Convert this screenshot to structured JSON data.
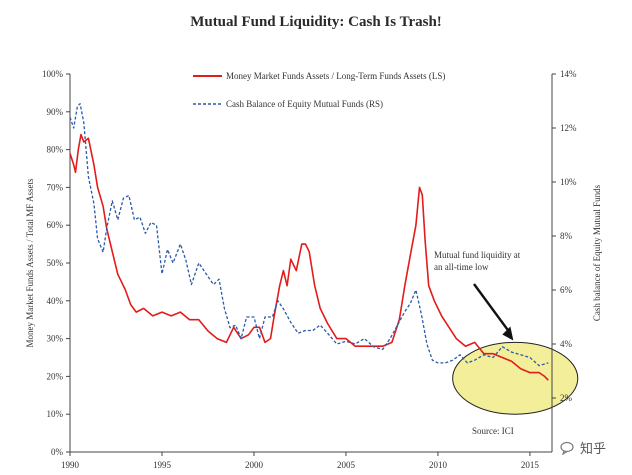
{
  "title": "Mutual Fund Liquidity: Cash Is Trash!",
  "source": "Source: ICI",
  "watermark": "知乎",
  "chart_data": {
    "type": "line",
    "x_ticks": [
      1990,
      1995,
      2000,
      2005,
      2010,
      2015
    ],
    "xlim": [
      1990,
      2016.2
    ],
    "left_axis": {
      "label": "Money Market Funds Assets / Total MF Assets",
      "ticks": [
        "0%",
        "10%",
        "20%",
        "30%",
        "40%",
        "50%",
        "60%",
        "70%",
        "80%",
        "90%",
        "100%"
      ],
      "ylim": [
        0,
        100
      ]
    },
    "right_axis": {
      "label": "Cash balance of Equity Mutual Funds",
      "ticks": [
        "2%",
        "4%",
        "6%",
        "8%",
        "10%",
        "12%",
        "14%"
      ],
      "ylim": [
        0,
        14
      ]
    },
    "legend": {
      "placement": "top-center",
      "entries": [
        {
          "label": "Money Market Funds Assets / Long-Term Funds Assets (LS)",
          "color": "#e31b1b",
          "style": "solid"
        },
        {
          "label": "Cash Balance of Equity Mutual Funds (RS)",
          "color": "#2b5aa8",
          "style": "dashed"
        }
      ]
    },
    "annotation": {
      "text_lines": [
        "Mutual fund liquidity at",
        "an all-time low"
      ],
      "arrow_to": [
        2014.1,
        29.5
      ]
    },
    "highlight_ellipse": {
      "center": [
        2014.2,
        19.5
      ],
      "radius_years": 3.4,
      "radius_pct": 9.5,
      "fill": "#f3ee9a",
      "stroke": "#222222"
    },
    "series": [
      {
        "name": "Money Market Funds Assets / Long-Term Funds Assets (LS)",
        "axis": "left",
        "color": "#e31b1b",
        "style": "solid",
        "x": [
          1990.0,
          1990.2,
          1990.3,
          1990.45,
          1990.6,
          1990.75,
          1991.0,
          1991.3,
          1991.5,
          1991.8,
          1992.0,
          1992.3,
          1992.6,
          1993.0,
          1993.3,
          1993.6,
          1994.0,
          1994.5,
          1995.0,
          1995.5,
          1996.0,
          1996.5,
          1997.0,
          1997.5,
          1998.0,
          1998.5,
          1998.9,
          1999.3,
          1999.7,
          2000.0,
          2000.3,
          2000.6,
          2000.9,
          2001.1,
          2001.4,
          2001.6,
          2001.8,
          2002.0,
          2002.3,
          2002.6,
          2002.8,
          2003.0,
          2003.3,
          2003.6,
          2004.0,
          2004.5,
          2005.0,
          2005.5,
          2006.0,
          2006.5,
          2007.0,
          2007.5,
          2007.9,
          2008.2,
          2008.5,
          2008.8,
          2009.0,
          2009.15,
          2009.3,
          2009.5,
          2009.8,
          2010.2,
          2010.6,
          2011.0,
          2011.5,
          2012.0,
          2012.5,
          2013.0,
          2013.5,
          2014.0,
          2014.5,
          2015.0,
          2015.5,
          2015.8,
          2016.0
        ],
        "values": [
          79,
          76,
          74,
          80,
          84,
          82,
          83,
          76,
          70,
          65,
          59,
          53,
          47,
          43,
          39,
          37,
          38,
          36,
          37,
          36,
          37,
          35,
          35,
          32,
          30,
          29,
          33,
          30,
          31,
          33,
          33,
          29,
          30,
          36,
          44,
          48,
          44,
          51,
          48,
          55,
          55,
          53,
          44,
          38,
          34,
          30,
          30,
          28,
          28,
          28,
          28,
          29,
          35,
          44,
          52,
          60,
          70,
          68,
          56,
          44,
          40,
          36,
          33,
          30,
          28,
          29,
          26,
          26,
          25,
          24,
          22,
          21,
          21,
          20,
          19
        ]
      },
      {
        "name": "Cash Balance of Equity Mutual Funds (RS)",
        "axis": "right",
        "color": "#2b5aa8",
        "style": "dashed",
        "x": [
          1990.0,
          1990.2,
          1990.4,
          1990.55,
          1990.75,
          1991.0,
          1991.3,
          1991.5,
          1991.8,
          1992.0,
          1992.3,
          1992.6,
          1992.9,
          1993.2,
          1993.5,
          1993.8,
          1994.1,
          1994.4,
          1994.7,
          1995.0,
          1995.3,
          1995.6,
          1996.0,
          1996.3,
          1996.6,
          1997.0,
          1997.4,
          1997.8,
          1998.1,
          1998.4,
          1998.7,
          1999.0,
          1999.3,
          1999.6,
          2000.0,
          2000.3,
          2000.6,
          2001.0,
          2001.3,
          2001.6,
          2002.0,
          2002.4,
          2002.8,
          2003.2,
          2003.6,
          2004.0,
          2004.5,
          2005.0,
          2005.5,
          2006.0,
          2006.5,
          2007.0,
          2007.4,
          2007.8,
          2008.2,
          2008.5,
          2008.8,
          2009.1,
          2009.4,
          2009.7,
          2010.0,
          2010.4,
          2010.8,
          2011.2,
          2011.6,
          2012.0,
          2012.5,
          2013.0,
          2013.5,
          2014.0,
          2014.5,
          2015.0,
          2015.5,
          2016.0
        ],
        "values": [
          12.4,
          12.0,
          12.8,
          12.9,
          12.2,
          10.2,
          9.2,
          7.9,
          7.4,
          8.3,
          9.3,
          8.6,
          9.4,
          9.5,
          8.6,
          8.7,
          8.1,
          8.5,
          8.4,
          6.6,
          7.5,
          7.0,
          7.7,
          7.1,
          6.2,
          7.0,
          6.6,
          6.2,
          6.4,
          5.3,
          4.6,
          4.7,
          4.2,
          5.0,
          5.0,
          4.2,
          5.0,
          5.0,
          5.6,
          5.3,
          4.8,
          4.4,
          4.5,
          4.5,
          4.7,
          4.4,
          4.0,
          4.1,
          4.0,
          4.2,
          3.9,
          3.8,
          4.2,
          4.7,
          5.2,
          5.5,
          6.0,
          5.1,
          4.0,
          3.4,
          3.3,
          3.3,
          3.4,
          3.6,
          3.3,
          3.4,
          3.6,
          3.5,
          3.9,
          3.7,
          3.6,
          3.5,
          3.2,
          3.3
        ]
      }
    ]
  },
  "colors": {
    "axis": "#444444",
    "text": "#333333"
  }
}
